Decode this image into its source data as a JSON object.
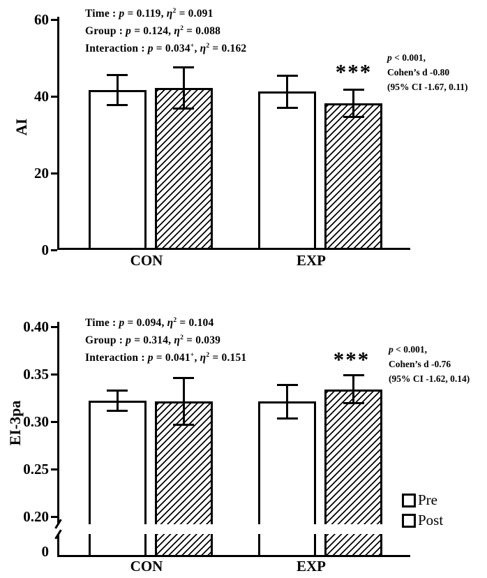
{
  "colors": {
    "ink": "#000000",
    "paper": "#ffffff"
  },
  "legend": {
    "items": [
      {
        "label": "Pre",
        "fill": "open"
      },
      {
        "label": "Post",
        "fill": "hatched"
      }
    ]
  },
  "chart_data": [
    {
      "type": "bar",
      "title": "",
      "xlabel": "",
      "ylabel": "AI",
      "categories": [
        "CON",
        "EXP"
      ],
      "series": [
        {
          "name": "Pre",
          "fill": "open",
          "values": [
            41.6,
            41.2
          ],
          "errors": [
            4.0,
            4.2
          ]
        },
        {
          "name": "Post",
          "fill": "hatched",
          "values": [
            42.2,
            38.2
          ],
          "errors": [
            5.5,
            3.6
          ]
        }
      ],
      "ylim": [
        0,
        60
      ],
      "yticks": [
        {
          "v": 0,
          "label": "0"
        },
        {
          "v": 20,
          "label": "20"
        },
        {
          "v": 40,
          "label": "40"
        },
        {
          "v": 60,
          "label": "60"
        }
      ],
      "grid": false,
      "legend_position": "bottom-right-of-figure",
      "stats_lines": [
        [
          {
            "t": "Time : "
          },
          {
            "t": "p",
            "i": 1
          },
          {
            "t": " = 0.119, "
          },
          {
            "t": "η",
            "i": 1
          },
          {
            "t": "2",
            "sup": 1
          },
          {
            "t": " = 0.091"
          }
        ],
        [
          {
            "t": "Group : "
          },
          {
            "t": "p",
            "i": 1
          },
          {
            "t": " = 0.124, "
          },
          {
            "t": "η",
            "i": 1
          },
          {
            "t": "2",
            "sup": 1
          },
          {
            "t": " = 0.088"
          }
        ],
        [
          {
            "t": "Interaction : "
          },
          {
            "t": "p",
            "i": 1
          },
          {
            "t": " = 0.034"
          },
          {
            "t": "+",
            "sup": 1
          },
          {
            "t": ", "
          },
          {
            "t": "η",
            "i": 1
          },
          {
            "t": "2",
            "sup": 1
          },
          {
            "t": " = 0.162"
          }
        ]
      ],
      "effect_lines": [
        [
          {
            "t": "p",
            "i": 1
          },
          {
            "t": " < 0.001,"
          }
        ],
        [
          {
            "t": "Cohen’s d -0.80"
          }
        ],
        [
          {
            "t": "(95% CI -1.67, 0.11)"
          }
        ]
      ],
      "significance": {
        "label": "***",
        "at": "EXP Post"
      }
    },
    {
      "type": "bar",
      "title": "",
      "xlabel": "",
      "ylabel": "EI-3pa",
      "categories": [
        "CON",
        "EXP"
      ],
      "series": [
        {
          "name": "Pre",
          "fill": "open",
          "values": [
            0.322,
            0.321
          ],
          "errors": [
            0.011,
            0.018
          ]
        },
        {
          "name": "Post",
          "fill": "hatched",
          "values": [
            0.321,
            0.334
          ],
          "errors": [
            0.025,
            0.015
          ]
        }
      ],
      "ylim": [
        0.2,
        0.4
      ],
      "axis_break": {
        "zero_label": "0"
      },
      "yticks": [
        {
          "v": 0.2,
          "label": "0.20"
        },
        {
          "v": 0.25,
          "label": "0.25"
        },
        {
          "v": 0.3,
          "label": "0.30"
        },
        {
          "v": 0.35,
          "label": "0.35"
        },
        {
          "v": 0.4,
          "label": "0.40"
        }
      ],
      "grid": false,
      "stats_lines": [
        [
          {
            "t": "Time : "
          },
          {
            "t": "p",
            "i": 1
          },
          {
            "t": " = 0.094, "
          },
          {
            "t": "η",
            "i": 1
          },
          {
            "t": "2",
            "sup": 1
          },
          {
            "t": " = 0.104"
          }
        ],
        [
          {
            "t": "Group : "
          },
          {
            "t": "p",
            "i": 1
          },
          {
            "t": " = 0.314, "
          },
          {
            "t": "η",
            "i": 1
          },
          {
            "t": "2",
            "sup": 1
          },
          {
            "t": " = 0.039"
          }
        ],
        [
          {
            "t": "Interaction : "
          },
          {
            "t": "p",
            "i": 1
          },
          {
            "t": " = 0.041"
          },
          {
            "t": "+",
            "sup": 1
          },
          {
            "t": ", "
          },
          {
            "t": "η",
            "i": 1
          },
          {
            "t": "2",
            "sup": 1
          },
          {
            "t": " = 0.151"
          }
        ]
      ],
      "effect_lines": [
        [
          {
            "t": "p",
            "i": 1
          },
          {
            "t": " < 0.001,"
          }
        ],
        [
          {
            "t": "Cohen’s d -0.76"
          }
        ],
        [
          {
            "t": "(95% CI -1.62, 0.14)"
          }
        ]
      ],
      "significance": {
        "label": "***",
        "at": "EXP Post"
      }
    }
  ]
}
